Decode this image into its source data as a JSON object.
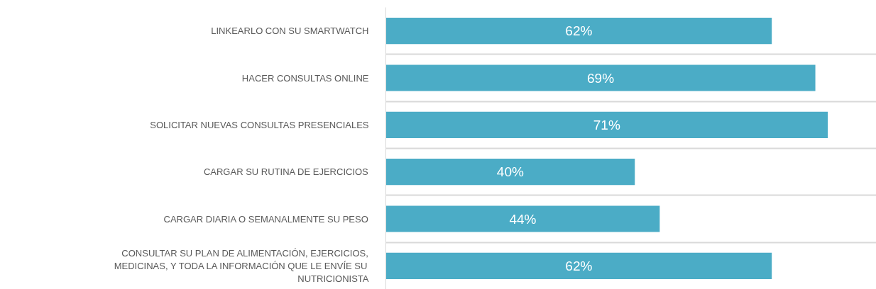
{
  "chart_data": {
    "type": "bar",
    "orientation": "horizontal",
    "categories": [
      "LINKEARLO CON SU SMARTWATCH",
      "HACER CONSULTAS ONLINE",
      "SOLICITAR NUEVAS CONSULTAS PRESENCIALES",
      "CARGAR SU RUTINA DE EJERCICIOS",
      "CARGAR DIARIA O SEMANALMENTE SU PESO",
      "CONSULTAR SU PLAN DE ALIMENTACIÓN, EJERCICIOS, MEDICINAS, Y TODA LA INFORMACIÓN QUE LE ENVÍE SU NUTRICIONISTA"
    ],
    "values": [
      62,
      69,
      71,
      40,
      44,
      62
    ],
    "value_labels": [
      "62%",
      "69%",
      "71%",
      "40%",
      "44%",
      "62%"
    ],
    "color": "#4bacc6",
    "xlim": [
      0,
      78.8
    ],
    "tick_labels": "y",
    "grid": "y"
  }
}
